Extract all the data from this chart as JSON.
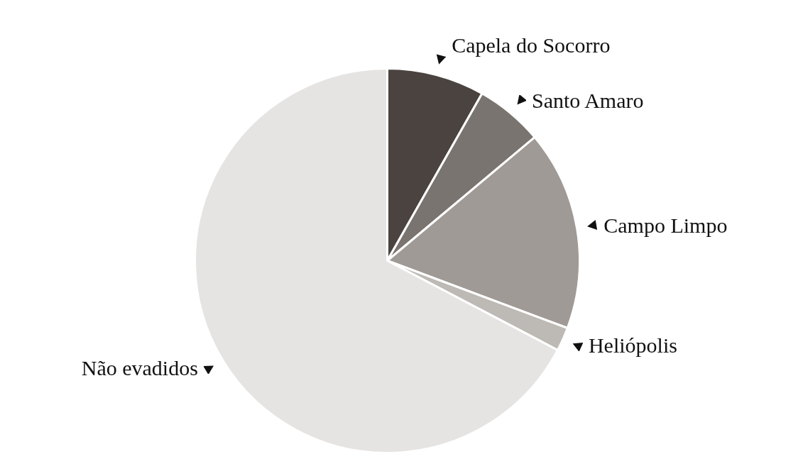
{
  "chart_data": {
    "type": "pie",
    "categories": [
      "Capela do Socorro",
      "Santo Amaro",
      "Campo Limpo",
      "Heliópolis",
      "Não evadidos"
    ],
    "values": [
      8.2,
      5.7,
      16.8,
      2.0,
      67.3
    ],
    "colors": [
      "#4a4340",
      "#7a7470",
      "#a09a96",
      "#bdb9b5",
      "#e6e4e2"
    ]
  }
}
